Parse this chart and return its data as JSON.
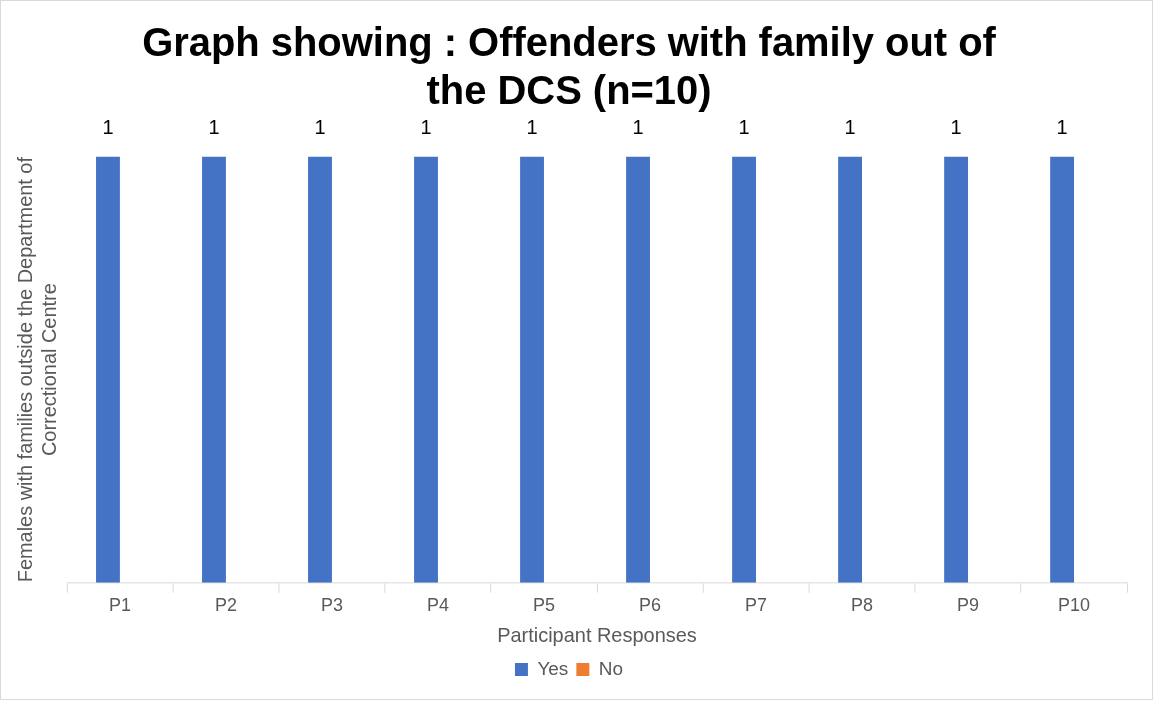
{
  "chart_data": {
    "type": "bar",
    "title": "Graph showing : Offenders with family out of the DCS (n=10)",
    "xlabel": "Participant Responses",
    "ylabel": "Females with families outside the Department of Correctional Centre",
    "categories": [
      "P1",
      "P2",
      "P3",
      "P4",
      "P5",
      "P6",
      "P7",
      "P8",
      "P9",
      "P10"
    ],
    "series": [
      {
        "name": "Yes",
        "color": "#4472c4",
        "values": [
          1,
          1,
          1,
          1,
          1,
          1,
          1,
          1,
          1,
          1
        ]
      },
      {
        "name": "No",
        "color": "#ed7d31",
        "values": [
          null,
          null,
          null,
          null,
          null,
          null,
          null,
          null,
          null,
          null
        ]
      }
    ],
    "tick_labels": "x",
    "data_labels": true,
    "legend": "bottom",
    "grid": false
  }
}
